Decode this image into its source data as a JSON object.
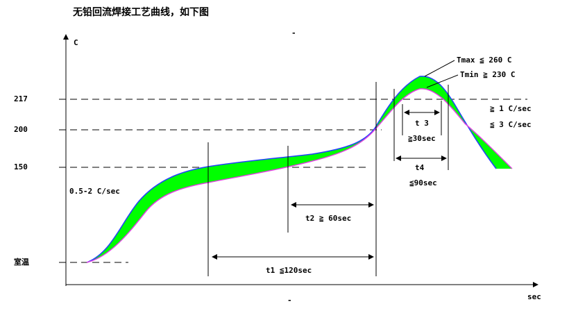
{
  "title": "无铅回流焊接工艺曲线，如下图",
  "axes": {
    "y_unit": "C",
    "x_unit": "sec"
  },
  "levels": [
    "217",
    "200",
    "150",
    "室温"
  ],
  "annotations": {
    "ramp": "0.5-2 C/sec",
    "t1": "t1 ≦120sec",
    "t2": "t2 ≧ 60sec",
    "t3": "t 3",
    "t3_limit": "≧30sec",
    "t4": "t4",
    "t4_limit": "≦90sec",
    "tmax": "Tmax ≦ 260 C",
    "tmin": "Tmin ≧ 230 C",
    "slope_min": "≧ 1 C/sec",
    "slope_max": "≦ 3 C/sec"
  }
}
